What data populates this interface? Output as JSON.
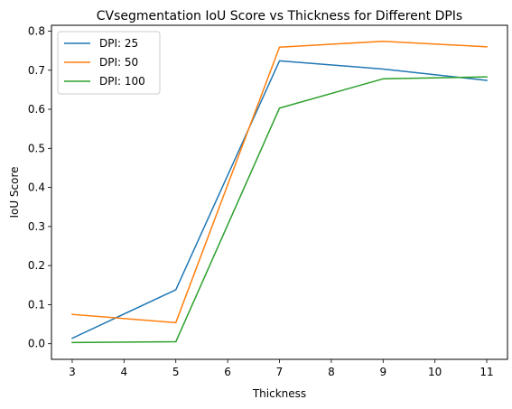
{
  "chart_data": {
    "type": "line",
    "title": "CVsegmentation IoU Score vs Thickness for Different DPIs",
    "xlabel": "Thickness",
    "ylabel": "IoU Score",
    "xlim": [
      2.6,
      11.4
    ],
    "ylim": [
      -0.04,
      0.815
    ],
    "xticks": [
      3,
      4,
      5,
      6,
      7,
      8,
      9,
      10,
      11
    ],
    "yticks": [
      0.0,
      0.1,
      0.2,
      0.3,
      0.4,
      0.5,
      0.6,
      0.7,
      0.8
    ],
    "ytick_labels": [
      "0.0",
      "0.1",
      "0.2",
      "0.3",
      "0.4",
      "0.5",
      "0.6",
      "0.7",
      "0.8"
    ],
    "x": [
      3,
      5,
      7,
      9,
      11
    ],
    "grid": false,
    "legend_position": "top-left",
    "series": [
      {
        "name": "DPI: 25",
        "color": "#1f77b4",
        "values": [
          0.014,
          0.138,
          0.724,
          0.703,
          0.674
        ]
      },
      {
        "name": "DPI: 50",
        "color": "#ff7f0e",
        "values": [
          0.075,
          0.054,
          0.759,
          0.774,
          0.76
        ]
      },
      {
        "name": "DPI: 100",
        "color": "#2ca02c",
        "values": [
          0.003,
          0.005,
          0.603,
          0.678,
          0.683
        ]
      }
    ]
  }
}
